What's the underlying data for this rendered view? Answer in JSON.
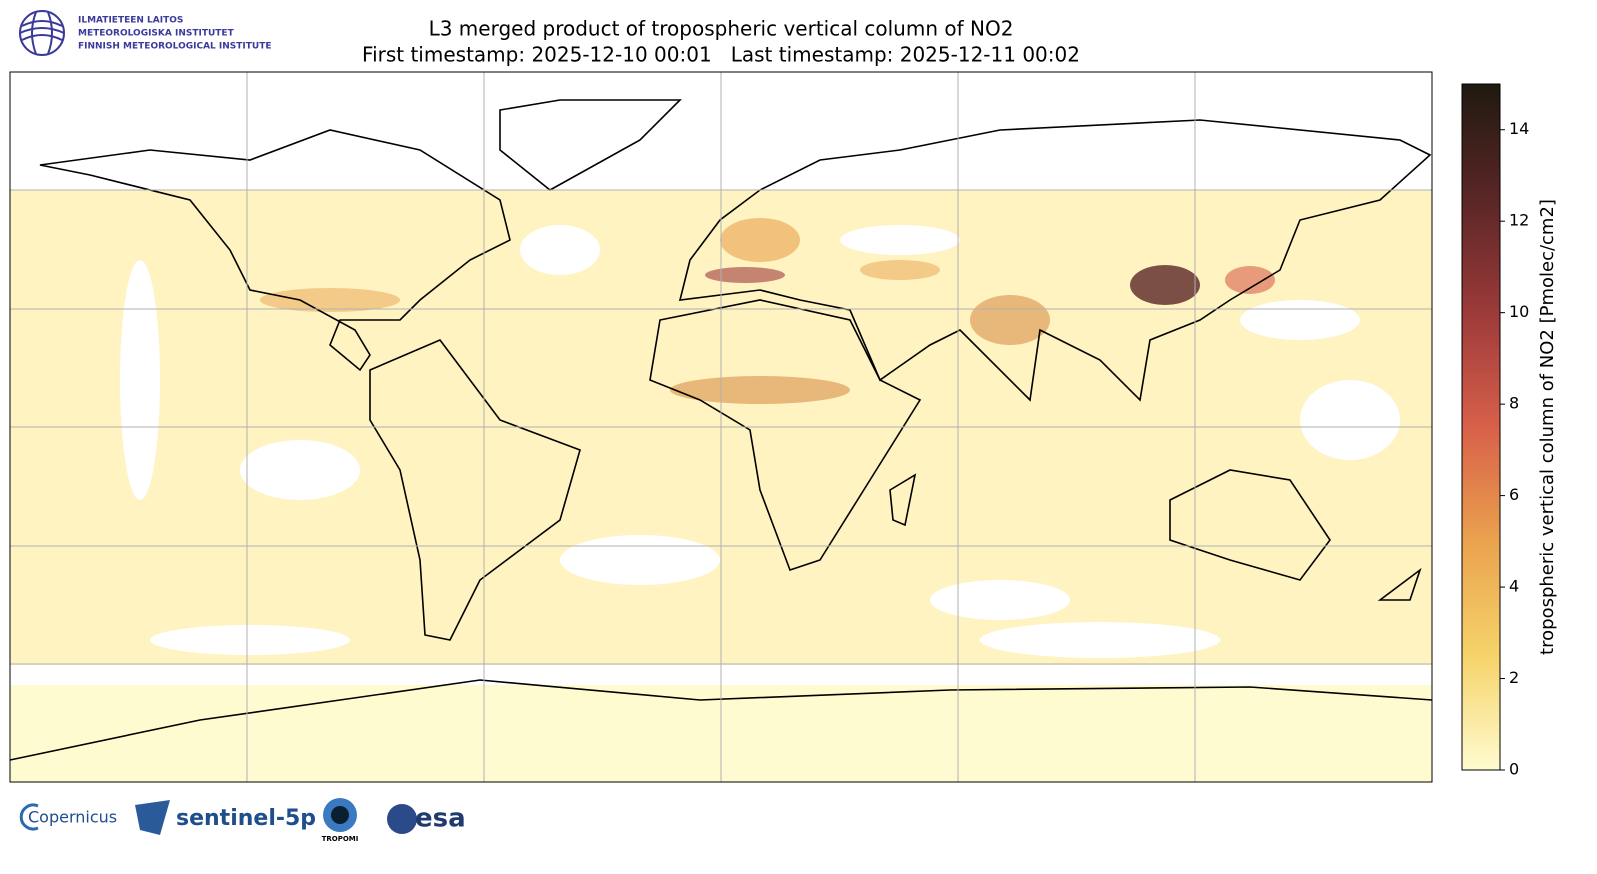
{
  "header": {
    "institute": [
      "ILMATIETEEN LAITOS",
      "METEOROLOGISKA INSTITUTET",
      "FINNISH METEOROLOGICAL INSTITUTE"
    ]
  },
  "title": [
    "L3 merged product of tropospheric vertical column of NO2",
    "First timestamp: 2025-12-10 00:01   Last timestamp: 2025-12-11 00:02"
  ],
  "colorbar": {
    "label": "tropospheric vertical column of NO2 [Pmolec/cm2]",
    "lim": [
      0,
      15
    ],
    "ticks": [
      0,
      2,
      4,
      6,
      8,
      10,
      12,
      14
    ],
    "colors": [
      "#fffbd0",
      "#f6d36a",
      "#eaa24e",
      "#d8604a",
      "#9c3a3a",
      "#5a2626",
      "#1f1a10"
    ]
  },
  "logos": [
    "Copernicus",
    "sentinel-5p",
    "TROPOMI",
    "esa"
  ]
}
